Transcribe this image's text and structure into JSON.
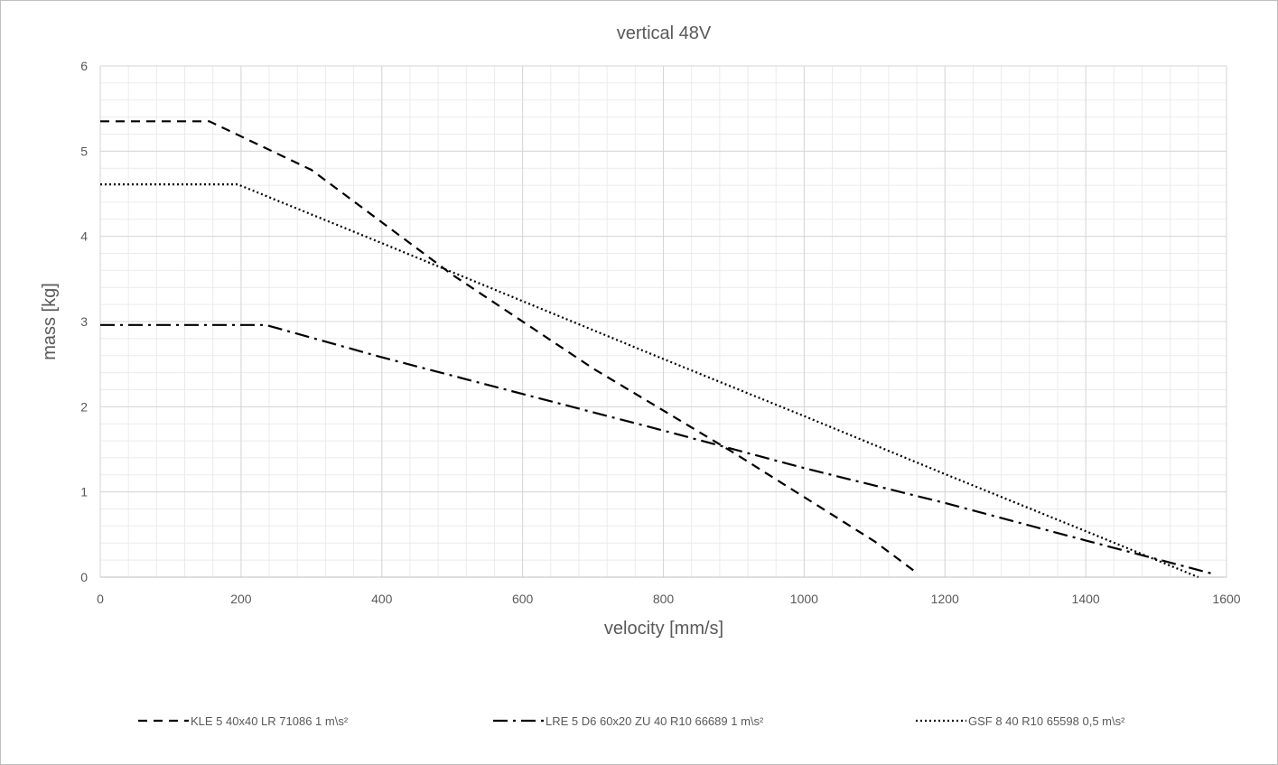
{
  "chart_data": {
    "type": "line",
    "title": "vertical 48V",
    "xlabel": "velocity [mm/s]",
    "ylabel": "mass [kg]",
    "xlim": [
      0,
      1600
    ],
    "ylim": [
      0,
      6
    ],
    "x_ticks": [
      "0",
      "200",
      "400",
      "600",
      "800",
      "1000",
      "1200",
      "1400",
      "1600"
    ],
    "y_ticks": [
      "0",
      "1",
      "2",
      "3",
      "4",
      "5",
      "6"
    ],
    "grid": true,
    "legend_position": "bottom",
    "series": [
      {
        "name": "KLE 5 40x40 LR 71086 1 m\\s²",
        "dash": "dash",
        "color": "#000000",
        "points": [
          [
            0,
            5.35
          ],
          [
            155,
            5.35
          ],
          [
            300,
            4.78
          ],
          [
            500,
            3.55
          ],
          [
            700,
            2.45
          ],
          [
            900,
            1.46
          ],
          [
            1100,
            0.42
          ],
          [
            1160,
            0.05
          ]
        ]
      },
      {
        "name": "LRE 5 D6 60x20 ZU 40 R10 66689 1 m\\s²",
        "dash": "dashdot",
        "color": "#000000",
        "points": [
          [
            0,
            2.96
          ],
          [
            235,
            2.96
          ],
          [
            400,
            2.58
          ],
          [
            600,
            2.15
          ],
          [
            800,
            1.72
          ],
          [
            1000,
            1.28
          ],
          [
            1200,
            0.87
          ],
          [
            1400,
            0.43
          ],
          [
            1580,
            0.04
          ]
        ]
      },
      {
        "name": "GSF 8 40 R10 65598 0,5 m\\s²",
        "dash": "dot",
        "color": "#000000",
        "points": [
          [
            0,
            4.61
          ],
          [
            195,
            4.61
          ],
          [
            400,
            3.92
          ],
          [
            600,
            3.24
          ],
          [
            800,
            2.56
          ],
          [
            1000,
            1.89
          ],
          [
            1200,
            1.21
          ],
          [
            1400,
            0.54
          ],
          [
            1560,
            0.0
          ]
        ]
      }
    ]
  }
}
